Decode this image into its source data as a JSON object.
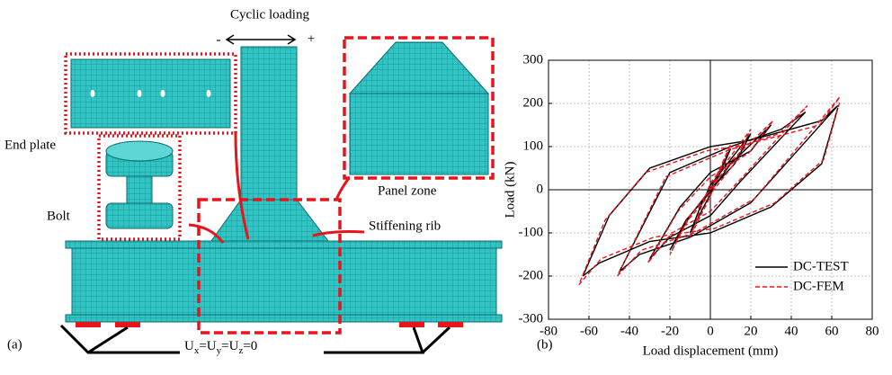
{
  "figure_a": {
    "panel_label": "(a)",
    "loading": "Cyclic loading",
    "minus": "-",
    "plus": "+",
    "end_plate": "End plate",
    "bolt": "Bolt",
    "panel_zone": "Panel zone",
    "stiffening_rib": "Stiffening rib",
    "boundary": [
      "U",
      "x",
      "=U",
      "y",
      "=U",
      "z",
      "=0"
    ]
  },
  "chart_data": {
    "type": "line",
    "panel_label": "(b)",
    "x_label": "Load displacement (mm)",
    "y_label": "Load (kN)",
    "xlim": [
      -80,
      80
    ],
    "ylim": [
      -300,
      300
    ],
    "xticks": [
      -80,
      -60,
      -40,
      -20,
      0,
      20,
      40,
      60,
      80
    ],
    "yticks": [
      -300,
      -200,
      -100,
      0,
      100,
      200,
      300
    ],
    "grid": true,
    "zero_lines": true,
    "legend": "lower right",
    "series": [
      {
        "name": "DC-TEST",
        "color": "#000000",
        "dash": false,
        "x": [
          0,
          10,
          5,
          0,
          -10,
          -5,
          0,
          20,
          12,
          0,
          -10,
          -20,
          -12,
          0,
          10,
          30,
          20,
          0,
          -15,
          -30,
          -20,
          0,
          15,
          47,
          35,
          10,
          -20,
          -45,
          -35,
          -10,
          20,
          63,
          55,
          20,
          0,
          -30,
          -50,
          -63,
          -55,
          -30,
          0,
          30,
          55,
          63
        ],
        "values": [
          0,
          95,
          40,
          -10,
          -100,
          -40,
          10,
          130,
          60,
          0,
          -60,
          -140,
          -70,
          -5,
          60,
          150,
          90,
          40,
          -40,
          -160,
          -110,
          -60,
          20,
          180,
          140,
          100,
          40,
          -190,
          -150,
          -110,
          -30,
          195,
          160,
          115,
          100,
          50,
          -60,
          -200,
          -170,
          -120,
          -100,
          -40,
          60,
          190
        ]
      },
      {
        "name": "DC-FEM",
        "color": "#e8141c",
        "dash": true,
        "x": [
          0,
          10,
          4,
          0,
          -10,
          -4,
          0,
          20,
          11,
          0,
          -11,
          -20,
          -11,
          0,
          11,
          31,
          19,
          0,
          -16,
          -31,
          -19,
          0,
          16,
          48,
          34,
          8,
          -22,
          -46,
          -34,
          -8,
          22,
          64,
          54,
          18,
          -2,
          -32,
          -52,
          -65,
          -54,
          -28,
          2,
          32,
          56,
          64
        ],
        "values": [
          0,
          105,
          35,
          -15,
          -110,
          -35,
          15,
          140,
          55,
          -10,
          -70,
          -150,
          -65,
          0,
          70,
          160,
          85,
          30,
          -50,
          -170,
          -100,
          -50,
          30,
          195,
          130,
          90,
          30,
          -200,
          -140,
          -100,
          -20,
          215,
          150,
          105,
          90,
          40,
          -70,
          -220,
          -160,
          -110,
          -90,
          -30,
          70,
          205
        ]
      }
    ]
  }
}
